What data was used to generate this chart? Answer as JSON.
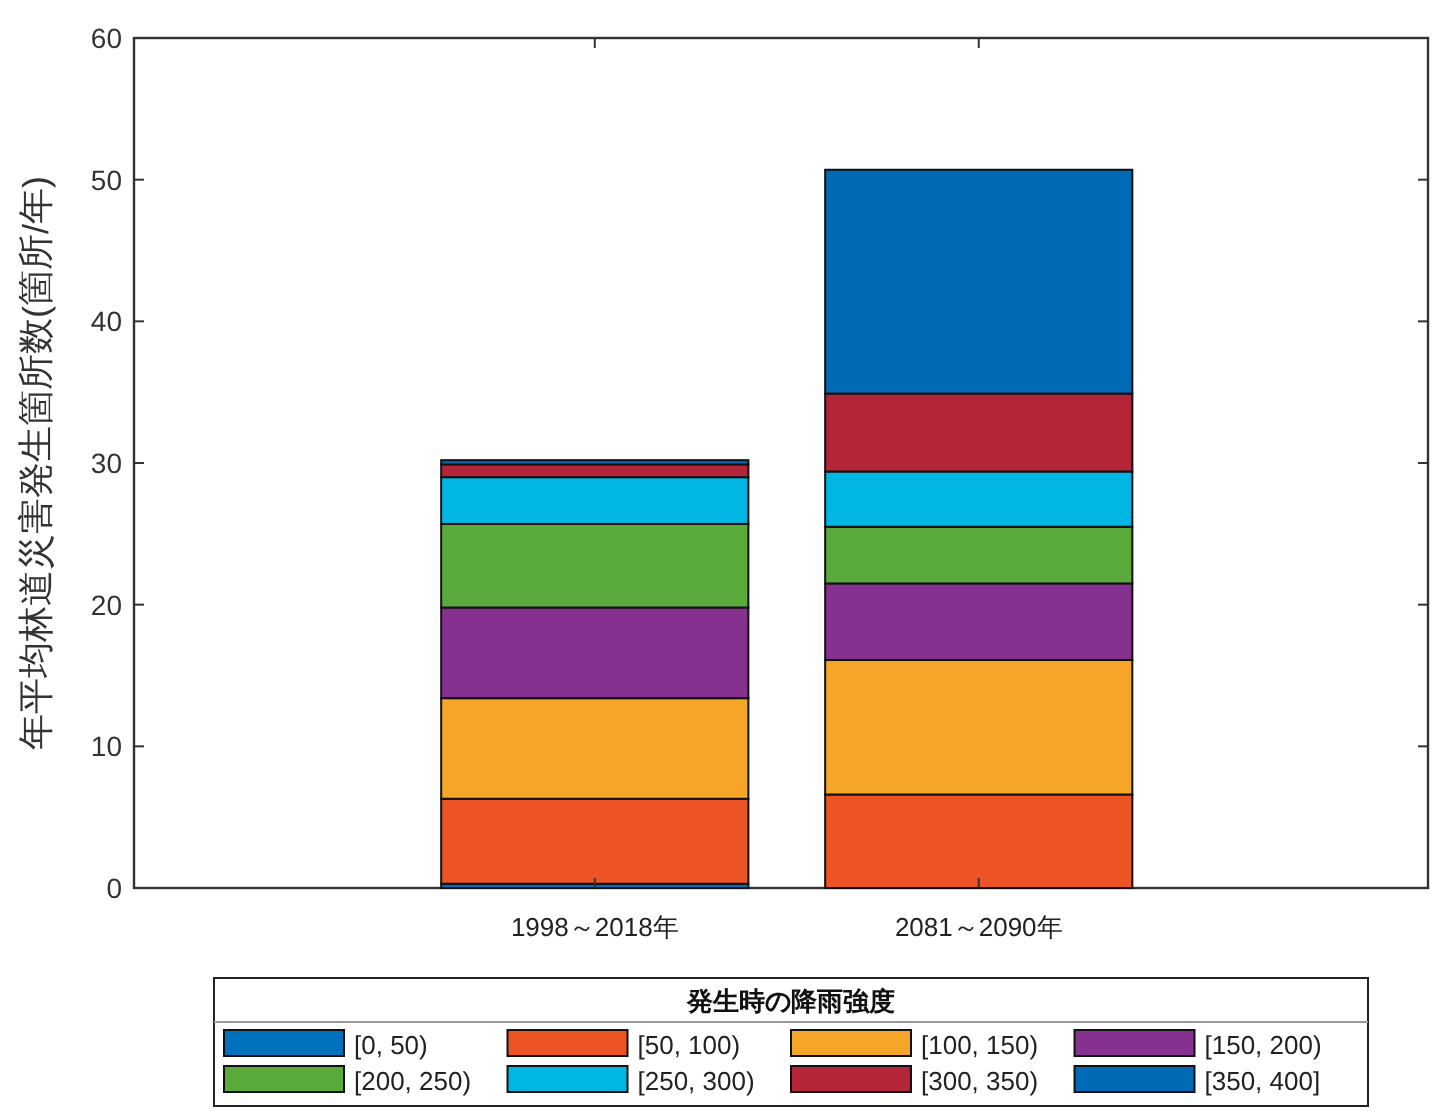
{
  "chart_data": {
    "type": "bar",
    "stacked": true,
    "ylabel": "年平均林道災害発生箇所数(箇所/年)",
    "legend_title": "発生時の降雨強度",
    "legend": "bottom",
    "categories": [
      "1998～2018年",
      "2081～2090年"
    ],
    "ylim": [
      0,
      60
    ],
    "yticks": [
      0,
      10,
      20,
      30,
      40,
      50,
      60
    ],
    "series": [
      {
        "name": "[0, 50)",
        "color": "#0072bd",
        "values": [
          0.3,
          0
        ]
      },
      {
        "name": "[50, 100)",
        "color": "#ec5426",
        "values": [
          6.0,
          6.6
        ]
      },
      {
        "name": "[100, 150)",
        "color": "#f5a629",
        "values": [
          7.1,
          9.5
        ]
      },
      {
        "name": "[150, 200)",
        "color": "#86308f",
        "values": [
          6.4,
          5.4
        ]
      },
      {
        "name": "[200, 250)",
        "color": "#5aaa3c",
        "values": [
          5.9,
          4.0
        ]
      },
      {
        "name": "[250, 300)",
        "color": "#00b6e2",
        "values": [
          3.3,
          3.9
        ]
      },
      {
        "name": "[300, 350)",
        "color": "#b5253a",
        "values": [
          0.9,
          5.5
        ]
      },
      {
        "name": "[350, 400]",
        "color": "#006bb4",
        "values": [
          0.3,
          15.8
        ]
      }
    ]
  }
}
